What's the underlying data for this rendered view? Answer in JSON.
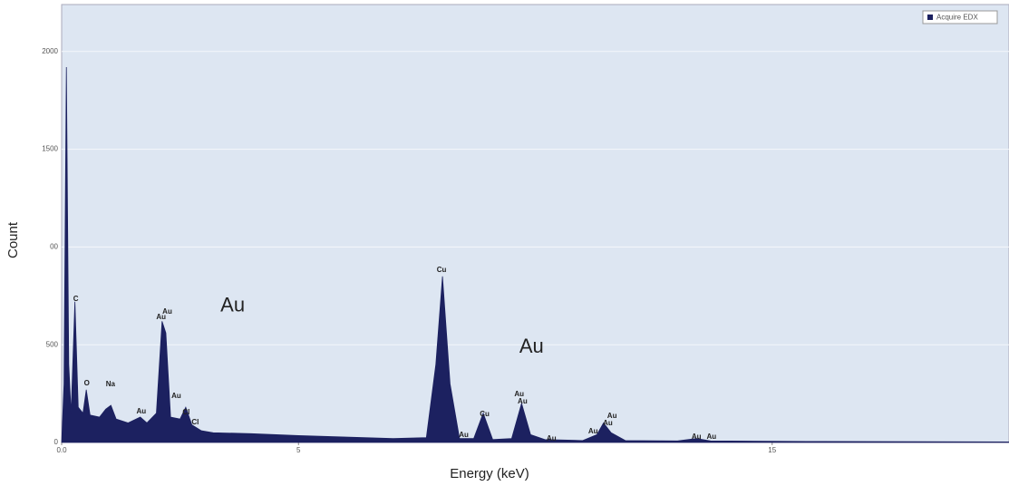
{
  "chart_data": {
    "type": "area",
    "xlabel": "Energy (keV)",
    "ylabel": "Count",
    "x": [
      0,
      0.05,
      0.1,
      0.15,
      0.2,
      0.28,
      0.35,
      0.45,
      0.52,
      0.6,
      0.8,
      0.93,
      1.04,
      1.15,
      1.4,
      1.66,
      1.8,
      2.0,
      2.12,
      2.2,
      2.3,
      2.5,
      2.62,
      2.75,
      2.95,
      3.2,
      4.0,
      5.0,
      6.0,
      7.0,
      7.7,
      7.9,
      8.04,
      8.2,
      8.4,
      8.7,
      8.9,
      9.1,
      9.5,
      9.71,
      9.9,
      10.2,
      11.0,
      11.3,
      11.44,
      11.6,
      11.9,
      13.0,
      13.4,
      13.7,
      16,
      20
    ],
    "series": [
      {
        "name": "Acquire EDX",
        "color": "#1c2160",
        "values": [
          0,
          300,
          1920,
          400,
          150,
          720,
          180,
          150,
          270,
          140,
          130,
          170,
          190,
          120,
          100,
          130,
          100,
          150,
          620,
          560,
          130,
          120,
          180,
          90,
          60,
          50,
          45,
          35,
          28,
          20,
          25,
          400,
          850,
          300,
          20,
          20,
          150,
          15,
          20,
          200,
          40,
          15,
          10,
          40,
          100,
          50,
          10,
          8,
          20,
          8,
          5,
          3
        ]
      }
    ],
    "xlim": [
      0,
      20
    ],
    "ylim": [
      0,
      2240
    ],
    "xticks": [
      {
        "value": 0,
        "label": "0.0"
      },
      5,
      15
    ],
    "yticks": [
      0,
      500,
      {
        "value": 1000,
        "label": "00"
      },
      1500,
      2000
    ],
    "grid": true,
    "legend": "upper right",
    "peak_labels": [
      {
        "label": "C",
        "x": 0.3,
        "y": 733
      },
      {
        "label": "O",
        "x": 0.53,
        "y": 302
      },
      {
        "label": "Na",
        "x": 1.03,
        "y": 297
      },
      {
        "label": "Au",
        "x": 1.68,
        "y": 158
      },
      {
        "label": "Au",
        "x": 2.1,
        "y": 640
      },
      {
        "label": "Au",
        "x": 2.23,
        "y": 668
      },
      {
        "label": "Au",
        "x": 2.42,
        "y": 237
      },
      {
        "label": "Cl",
        "x": 2.63,
        "y": 153
      },
      {
        "label": "Cl",
        "x": 2.82,
        "y": 102
      },
      {
        "label": "Cu",
        "x": 8.02,
        "y": 882
      },
      {
        "label": "Au",
        "x": 8.49,
        "y": 37
      },
      {
        "label": "Cu",
        "x": 8.93,
        "y": 144
      },
      {
        "label": "Au",
        "x": 9.66,
        "y": 246
      },
      {
        "label": "Au",
        "x": 9.73,
        "y": 209
      },
      {
        "label": "Au",
        "x": 10.34,
        "y": 19
      },
      {
        "label": "Au",
        "x": 11.22,
        "y": 56
      },
      {
        "label": "Au",
        "x": 11.53,
        "y": 97
      },
      {
        "label": "Au",
        "x": 11.62,
        "y": 135
      },
      {
        "label": "Au",
        "x": 13.4,
        "y": 28
      },
      {
        "label": "Au",
        "x": 13.72,
        "y": 28
      }
    ],
    "annotations": [
      {
        "label": "Au",
        "x": 3.61,
        "y": 696
      },
      {
        "label": "Au",
        "x": 9.92,
        "y": 487
      }
    ]
  }
}
